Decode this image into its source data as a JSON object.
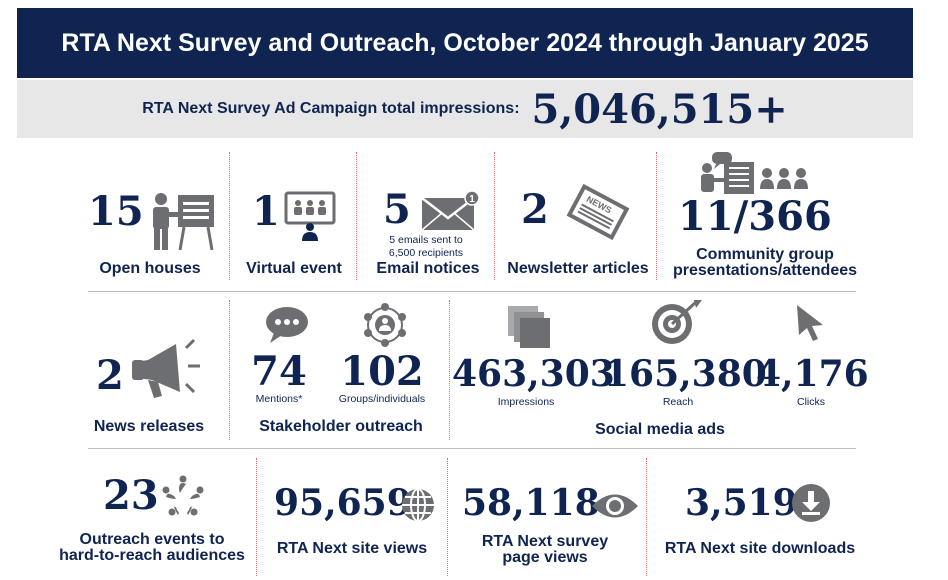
{
  "header": {
    "title": "RTA Next Survey and Outreach, October 2024 through January 2025"
  },
  "impressions": {
    "label": "RTA Next Survey Ad Campaign total impressions:",
    "value": "5,046,515+"
  },
  "row1": {
    "open_houses": {
      "number": "15",
      "caption": "Open houses",
      "icon": "presenter-icon"
    },
    "virtual_event": {
      "number": "1",
      "caption": "Virtual event",
      "icon": "virtual-meeting-icon"
    },
    "email_notices": {
      "number": "5",
      "note_line1": "5 emails sent to",
      "note_line2": "6,500 recipients",
      "caption": "Email notices",
      "badge": "1",
      "icon": "envelope-icon"
    },
    "newsletter": {
      "number": "2",
      "caption": "Newsletter articles",
      "icon": "newspaper-icon",
      "icon_text": "NEWS"
    },
    "community": {
      "number": "11/366",
      "caption_line1": "Community group",
      "caption_line2": "presentations/attendees",
      "icon": "group-presentation-icon"
    }
  },
  "row2": {
    "news_releases": {
      "number": "2",
      "caption": "News releases",
      "icon": "megaphone-icon"
    },
    "stakeholder": {
      "caption": "Stakeholder outreach",
      "mentions": {
        "number": "74",
        "label": "Mentions*",
        "icon": "speech-bubble-icon"
      },
      "groups": {
        "number": "102",
        "label": "Groups/individuals",
        "icon": "network-icon"
      }
    },
    "social": {
      "caption": "Social media ads",
      "impressions": {
        "number": "463,303",
        "label": "Impressions",
        "icon": "layers-icon"
      },
      "reach": {
        "number": "165,380",
        "label": "Reach",
        "icon": "target-icon"
      },
      "clicks": {
        "number": "4,176",
        "label": "Clicks",
        "icon": "cursor-icon"
      }
    }
  },
  "row3": {
    "outreach_events": {
      "number": "23",
      "caption_line1": "Outreach events to",
      "caption_line2": "hard-to-reach audiences",
      "icon": "people-circle-icon"
    },
    "site_views": {
      "number": "95,659",
      "caption": "RTA Next site views",
      "icon": "globe-icon"
    },
    "survey_views": {
      "number": "58,118",
      "caption_line1": "RTA Next survey",
      "caption_line2": "page views",
      "icon": "eye-icon"
    },
    "downloads": {
      "number": "3,519",
      "caption": "RTA Next site downloads",
      "icon": "download-icon"
    }
  },
  "colors": {
    "navy": "#0f2451",
    "icon_gray": "#6d6e71",
    "bar_gray": "#e7e7e8",
    "divider_red": "#d86a6a"
  }
}
